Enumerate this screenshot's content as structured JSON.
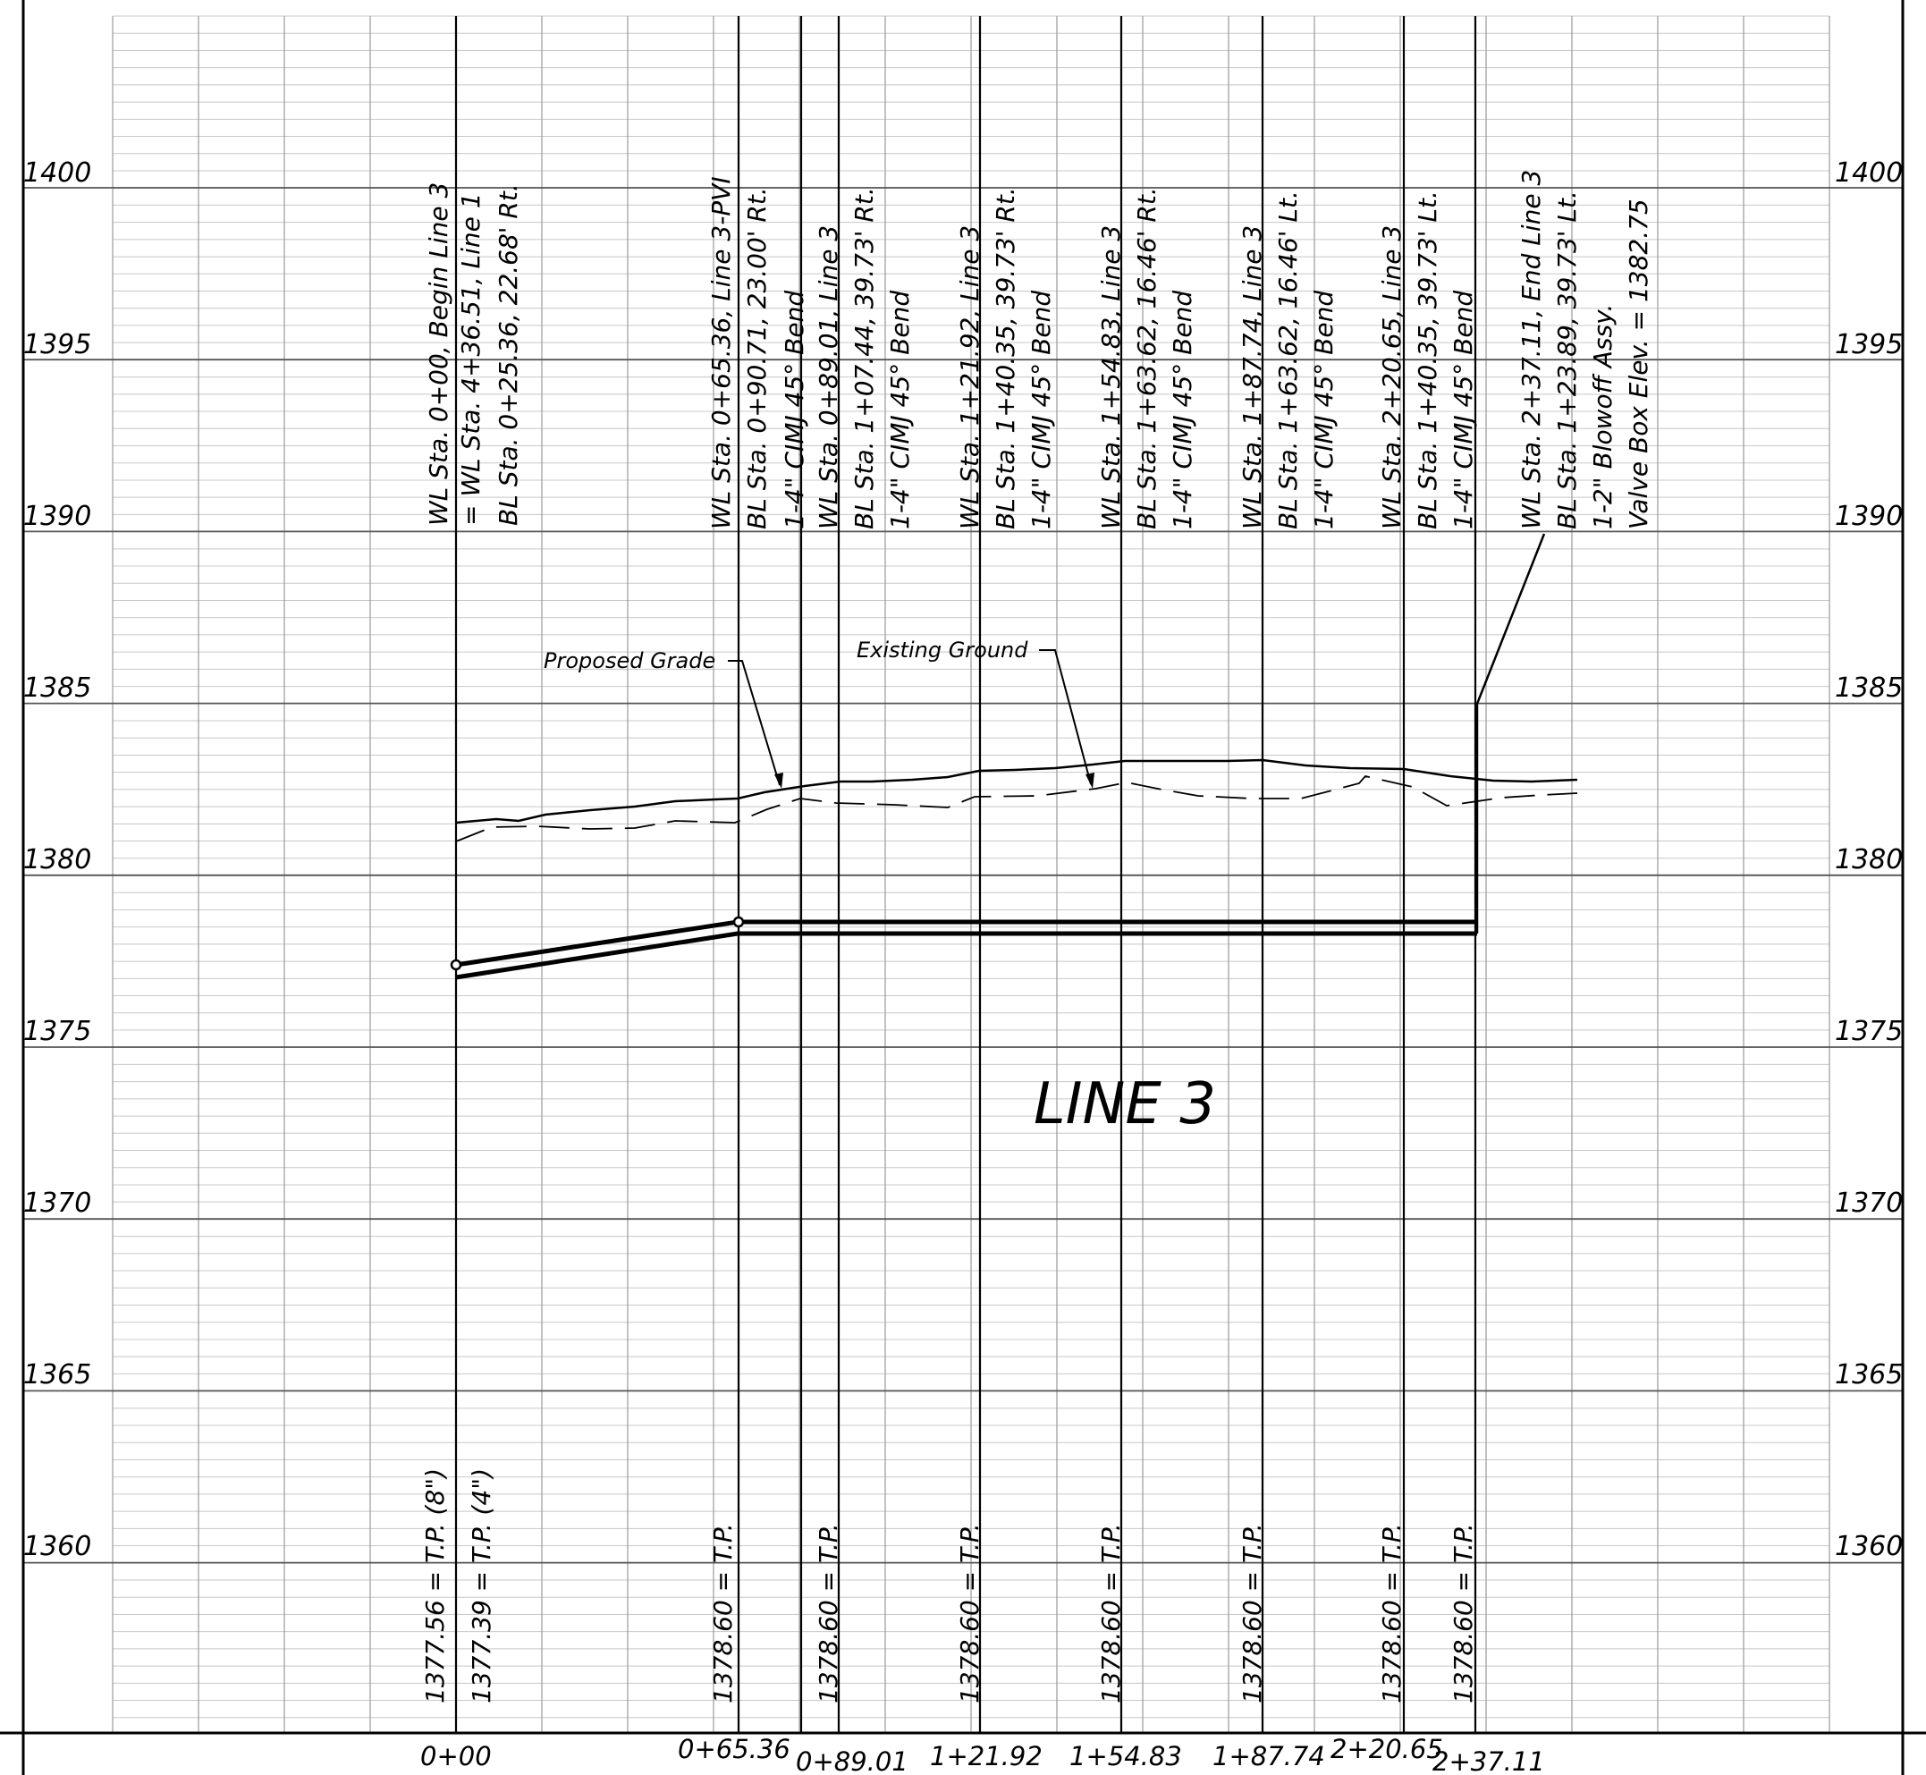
{
  "drawing": {
    "title": "LINE 3",
    "background": "#ffffff",
    "line_color": "#000000",
    "grid_color": "#9a9a9a"
  },
  "elevation_labels": [
    "1400",
    "1395",
    "1390",
    "1385",
    "1380",
    "1375",
    "1370",
    "1365",
    "1360"
  ],
  "station_labels": [
    "0+00",
    "0+65.36",
    "0+89.01",
    "1+21.92",
    "1+54.83",
    "1+87.74",
    "2+20.65",
    "2+37.11"
  ],
  "callouts": {
    "proposed_grade": "Proposed Grade",
    "existing_ground": "Existing Ground"
  },
  "station_notes": [
    [
      "WL Sta. 0+00, Begin Line 3",
      "= WL Sta. 4+36.51, Line 1",
      "BL Sta. 0+25.36, 22.68' Rt."
    ],
    [
      "WL Sta. 0+65.36, Line 3-PVI",
      "BL Sta. 0+90.71, 23.00' Rt.",
      "1-4\" CIMJ 45° Bend"
    ],
    [
      "WL Sta. 0+89.01, Line 3",
      "BL Sta. 1+07.44, 39.73' Rt.",
      "1-4\" CIMJ 45° Bend"
    ],
    [
      "WL Sta. 1+21.92, Line 3",
      "BL Sta. 1+40.35, 39.73' Rt.",
      "1-4\" CIMJ 45° Bend"
    ],
    [
      "WL Sta. 1+54.83, Line 3",
      "BL Sta. 1+63.62, 16.46' Rt.",
      "1-4\" CIMJ 45° Bend"
    ],
    [
      "WL Sta. 1+87.74, Line 3",
      "BL Sta. 1+63.62, 16.46' Lt.",
      "1-4\" CIMJ 45° Bend"
    ],
    [
      "WL Sta. 2+20.65, Line 3",
      "BL Sta. 1+40.35, 39.73' Lt.",
      "1-4\" CIMJ 45° Bend"
    ],
    [
      "WL Sta. 2+37.11, End Line 3",
      "BL Sta. 1+23.89, 39.73' Lt.",
      "1-2\" Blowoff Assy.",
      "Valve Box Elev. = 1382.75"
    ]
  ],
  "tp_labels": [
    "1377.56 = T.P. (8\")",
    "1377.39 = T.P. (4\")",
    "1378.60 = T.P.",
    "1378.60 = T.P.",
    "1378.60 = T.P.",
    "1378.60 = T.P.",
    "1378.60 = T.P.",
    "1378.60 = T.P.",
    "1378.60 = T.P."
  ]
}
